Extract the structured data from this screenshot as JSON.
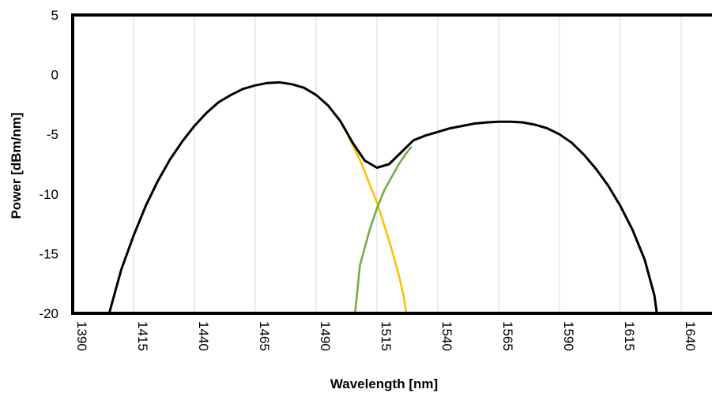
{
  "chart_data": {
    "type": "line",
    "title": "",
    "xlabel": "Wavelength [nm]",
    "ylabel": "Power [dBm/nm]",
    "xlim": [
      1390,
      1640
    ],
    "ylim": [
      -20,
      5
    ],
    "x_ticks": [
      "1390",
      "1415",
      "1440",
      "1465",
      "1490",
      "1515",
      "1540",
      "1565",
      "1590",
      "1615",
      "1640"
    ],
    "y_ticks": [
      "5",
      "0",
      "-5",
      "-10",
      "-15",
      "-20"
    ],
    "grid": "vertical",
    "legend": "none",
    "series": [
      {
        "color": "#000000",
        "points": [
          [
            1405,
            -20
          ],
          [
            1410,
            -16.3
          ],
          [
            1415,
            -13.5
          ],
          [
            1420,
            -11
          ],
          [
            1425,
            -8.9
          ],
          [
            1430,
            -7.1
          ],
          [
            1435,
            -5.6
          ],
          [
            1440,
            -4.3
          ],
          [
            1445,
            -3.2
          ],
          [
            1450,
            -2.3
          ],
          [
            1455,
            -1.7
          ],
          [
            1460,
            -1.2
          ],
          [
            1465,
            -0.9
          ],
          [
            1470,
            -0.7
          ],
          [
            1475,
            -0.65
          ],
          [
            1480,
            -0.8
          ],
          [
            1485,
            -1.1
          ],
          [
            1490,
            -1.7
          ],
          [
            1495,
            -2.6
          ],
          [
            1500,
            -3.9
          ],
          [
            1505,
            -5.7
          ],
          [
            1510,
            -7.2
          ],
          [
            1515,
            -7.8
          ],
          [
            1520,
            -7.5
          ],
          [
            1525,
            -6.5
          ],
          [
            1530,
            -5.5
          ],
          [
            1535,
            -5.1
          ],
          [
            1540,
            -4.8
          ],
          [
            1545,
            -4.5
          ],
          [
            1550,
            -4.3
          ],
          [
            1555,
            -4.1
          ],
          [
            1560,
            -4.0
          ],
          [
            1565,
            -3.95
          ],
          [
            1570,
            -3.95
          ],
          [
            1575,
            -4.0
          ],
          [
            1580,
            -4.2
          ],
          [
            1585,
            -4.5
          ],
          [
            1590,
            -5.0
          ],
          [
            1595,
            -5.7
          ],
          [
            1600,
            -6.7
          ],
          [
            1605,
            -7.9
          ],
          [
            1610,
            -9.3
          ],
          [
            1615,
            -11.0
          ],
          [
            1620,
            -13.0
          ],
          [
            1625,
            -15.5
          ],
          [
            1629,
            -18.5
          ],
          [
            1630,
            -20
          ]
        ]
      },
      {
        "color": "#ffc000",
        "points": [
          [
            1500,
            -3.9
          ],
          [
            1503,
            -5.0
          ],
          [
            1506,
            -6.3
          ],
          [
            1509,
            -7.6
          ],
          [
            1512,
            -9.2
          ],
          [
            1515,
            -10.7
          ],
          [
            1518,
            -12.6
          ],
          [
            1521,
            -14.6
          ],
          [
            1524,
            -16.8
          ],
          [
            1526,
            -18.6
          ],
          [
            1527,
            -20
          ]
        ]
      },
      {
        "color": "#70ad47",
        "points": [
          [
            1506,
            -20
          ],
          [
            1507,
            -18
          ],
          [
            1508,
            -16
          ],
          [
            1510,
            -14.5
          ],
          [
            1512,
            -13
          ],
          [
            1515,
            -11.2
          ],
          [
            1518,
            -9.7
          ],
          [
            1521,
            -8.6
          ],
          [
            1524,
            -7.5
          ],
          [
            1527,
            -6.6
          ],
          [
            1529,
            -6.1
          ]
        ]
      }
    ]
  }
}
